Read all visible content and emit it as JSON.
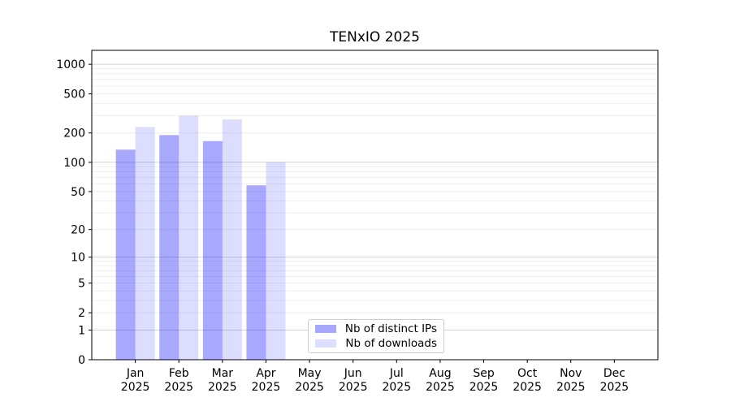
{
  "chart_data": {
    "type": "bar",
    "title": "TENxIO 2025",
    "categories": [
      "Jan",
      "Feb",
      "Mar",
      "Apr",
      "May",
      "Jun",
      "Jul",
      "Aug",
      "Sep",
      "Oct",
      "Nov",
      "Dec"
    ],
    "category_year": "2025",
    "series": [
      {
        "name": "Nb of distinct IPs",
        "color_hex": "#a8a8f7",
        "color_rgba": "rgba(0,0,255,0.34)",
        "values": [
          135,
          190,
          165,
          58,
          0,
          0,
          0,
          0,
          0,
          0,
          0,
          0
        ]
      },
      {
        "name": "Nb of downloads",
        "color_hex": "#dcdcfc",
        "color_rgba": "rgba(0,0,255,0.135)",
        "values": [
          230,
          300,
          275,
          100,
          0,
          0,
          0,
          0,
          0,
          0,
          0,
          0
        ]
      }
    ],
    "yscale": "log1p",
    "y_ticks": [
      0,
      1,
      2,
      5,
      10,
      20,
      50,
      100,
      200,
      500,
      1000
    ],
    "ylim": [
      0,
      1385
    ],
    "xlabel": "",
    "ylabel": "",
    "grid": "horizontal-major-minor",
    "legend_position": "lower-center-inside"
  }
}
